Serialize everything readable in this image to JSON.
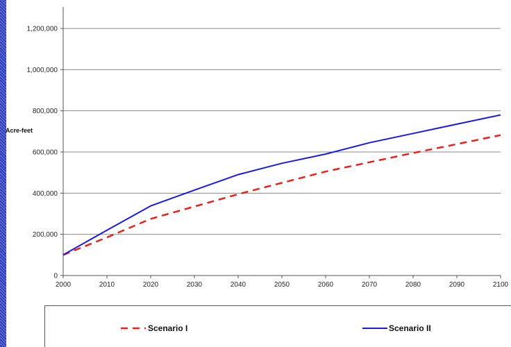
{
  "chart_data": {
    "type": "line",
    "title": "",
    "xlabel": "",
    "ylabel": "Acre-feet",
    "x": [
      2000,
      2010,
      2020,
      2030,
      2040,
      2050,
      2060,
      2070,
      2080,
      2090,
      2100
    ],
    "xticks": [
      "2000",
      "2010",
      "2020",
      "2030",
      "2040",
      "2050",
      "2060",
      "2070",
      "2080",
      "2090",
      "2100"
    ],
    "yticks": [
      "0",
      "200,000",
      "400,000",
      "600,000",
      "800,000",
      "1,000,000",
      "1,200,000"
    ],
    "ytick_values": [
      0,
      200000,
      400000,
      600000,
      800000,
      1000000,
      1200000
    ],
    "xlim": [
      2000,
      2100
    ],
    "ylim": [
      0,
      1200000
    ],
    "grid": "horizontal",
    "legend_position": "bottom",
    "series": [
      {
        "name": "Scenario I",
        "color": "#e8201c",
        "style": "dashed",
        "values": [
          100000,
          185000,
          275000,
          335000,
          395000,
          450000,
          505000,
          550000,
          595000,
          638000,
          682000
        ]
      },
      {
        "name": "Scenario II",
        "color": "#1a1adc",
        "style": "solid",
        "values": [
          100000,
          220000,
          338000,
          415000,
          490000,
          545000,
          590000,
          645000,
          690000,
          735000,
          780000
        ]
      }
    ]
  }
}
